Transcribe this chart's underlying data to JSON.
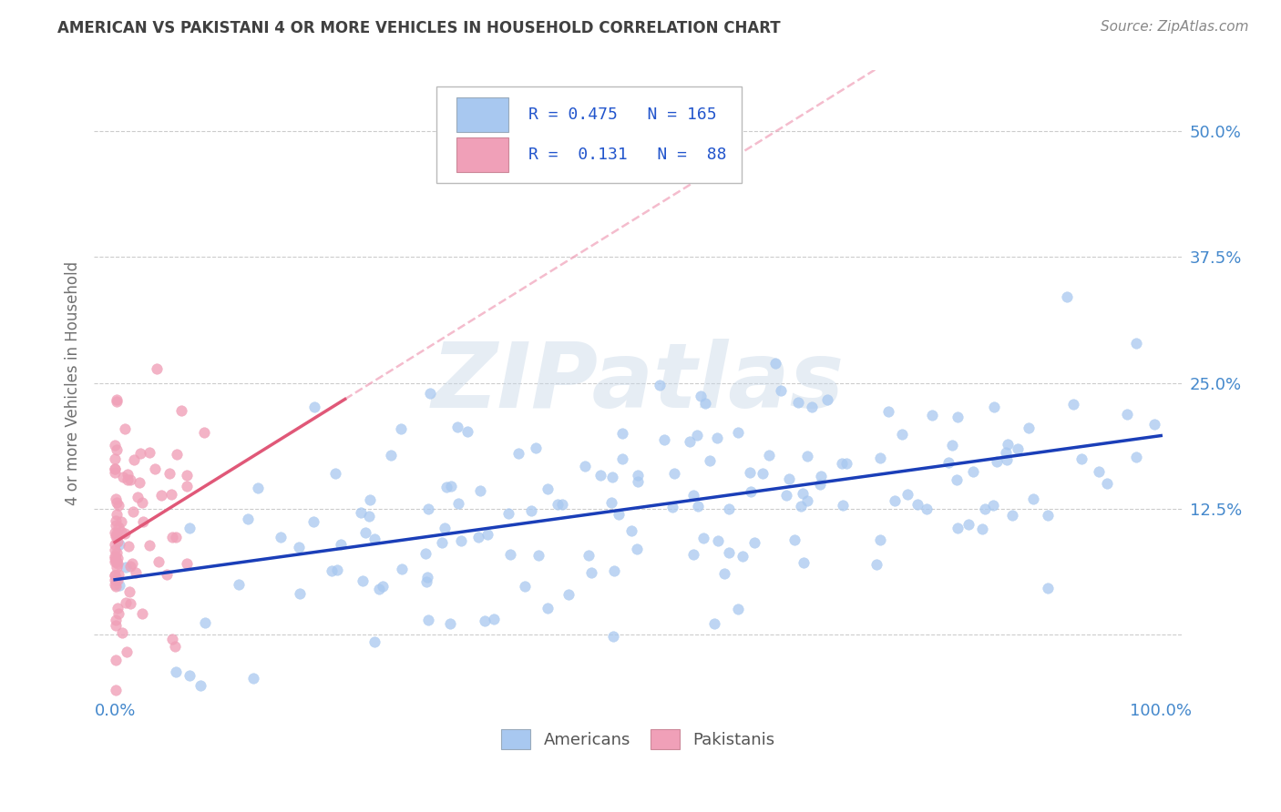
{
  "title": "AMERICAN VS PAKISTANI 4 OR MORE VEHICLES IN HOUSEHOLD CORRELATION CHART",
  "source": "Source: ZipAtlas.com",
  "ylabel": "4 or more Vehicles in Household",
  "watermark": "ZIPatlas",
  "xlim": [
    -0.02,
    1.02
  ],
  "ylim": [
    -0.06,
    0.56
  ],
  "xticks": [
    0.0,
    0.25,
    0.5,
    0.75,
    1.0
  ],
  "xticklabels": [
    "0.0%",
    "",
    "",
    "",
    "100.0%"
  ],
  "yticks": [
    0.0,
    0.125,
    0.25,
    0.375,
    0.5
  ],
  "yticklabels": [
    "",
    "12.5%",
    "25.0%",
    "37.5%",
    "50.0%"
  ],
  "R_american": 0.475,
  "N_american": 165,
  "R_pakistani": 0.131,
  "N_pakistani": 88,
  "american_color": "#a8c8f0",
  "pakistani_color": "#f0a0b8",
  "american_line_color": "#1a3eb8",
  "pakistani_line_color": "#e05878",
  "pakistani_dash_color": "#f0a0b8",
  "grid_color": "#cccccc",
  "background_color": "#ffffff",
  "title_color": "#404040",
  "tick_color": "#4488cc",
  "source_color": "#888888",
  "legend_R_color": "#2255cc",
  "legend_text_color": "#333333"
}
